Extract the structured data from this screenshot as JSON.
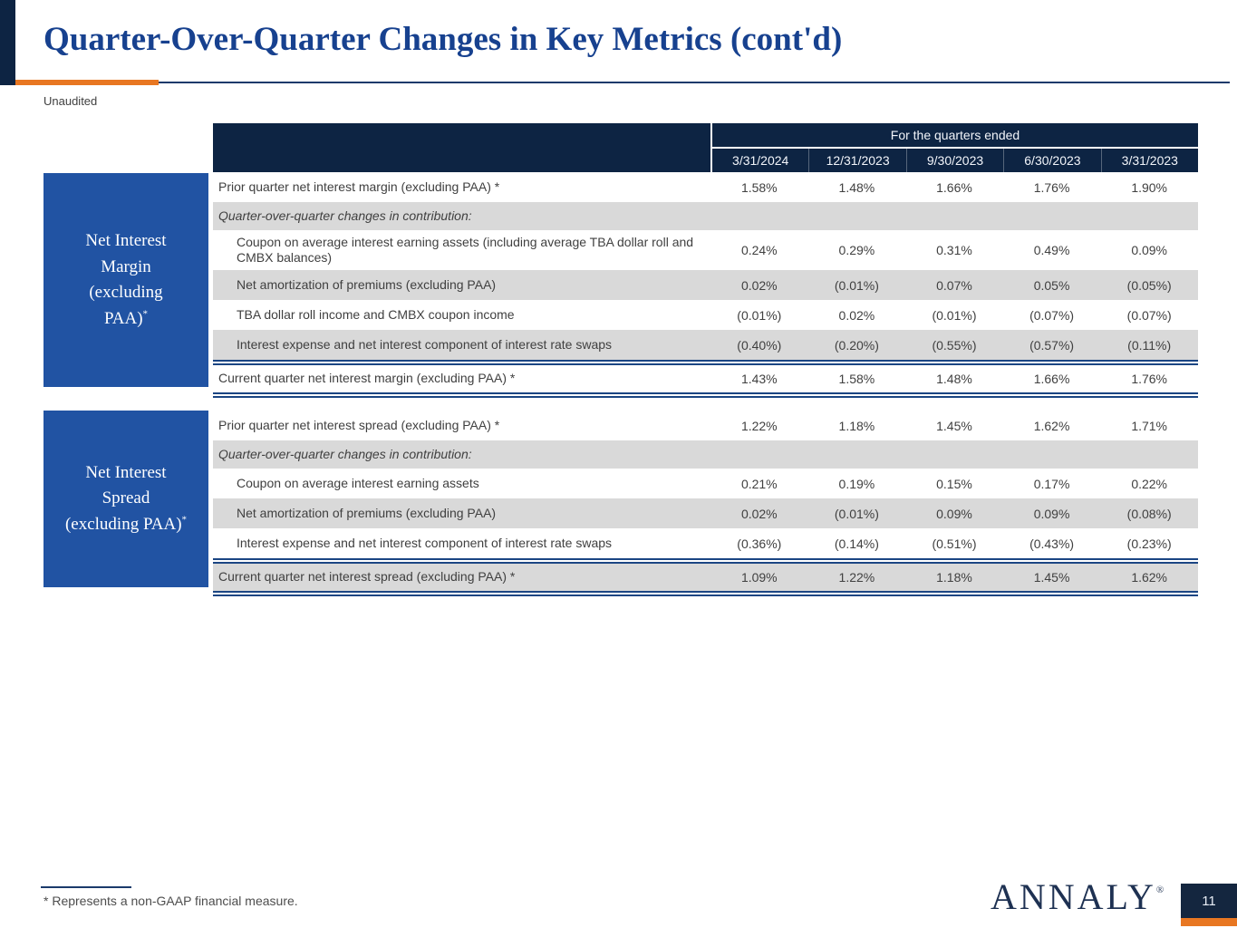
{
  "slide": {
    "title": "Quarter-Over-Quarter Changes in Key Metrics (cont'd)",
    "subtitle": "Unaudited",
    "footnote": "* Represents a non-GAAP financial measure.",
    "logo_text": "ANNALY",
    "logo_reg_mark": "®",
    "page_number": "11"
  },
  "colors": {
    "title_blue": "#17418f",
    "header_navy": "#0d2443",
    "side_box_blue": "#2153a3",
    "brand_orange": "#e87722",
    "shaded_row_gray": "#d9d9d9",
    "body_text": "#404040",
    "total_rule_blue": "#1b4583",
    "logo_navy": "#1e3152"
  },
  "table": {
    "header_label": "For the quarters ended",
    "columns": [
      "3/31/2024",
      "12/31/2023",
      "9/30/2023",
      "6/30/2023",
      "3/31/2023"
    ],
    "sections": [
      {
        "side_label": {
          "lines": [
            "Net Interest",
            "Margin",
            "(excluding",
            "PAA)"
          ],
          "sup": "*"
        },
        "rows": [
          {
            "label": "Prior quarter net interest margin (excluding PAA) *",
            "values": [
              "1.58%",
              "1.48%",
              "1.66%",
              "1.76%",
              "1.90%"
            ],
            "variant": "plain",
            "shaded": false
          },
          {
            "label": "Quarter-over-quarter changes in contribution:",
            "values": [
              "",
              "",
              "",
              "",
              ""
            ],
            "variant": "subhead",
            "shaded": true
          },
          {
            "label": "Coupon on average interest earning assets (including average TBA dollar roll and CMBX balances)",
            "values": [
              "0.24%",
              "0.29%",
              "0.31%",
              "0.49%",
              "0.09%"
            ],
            "variant": "indent",
            "tall": true,
            "shaded": false
          },
          {
            "label": "Net amortization of premiums (excluding PAA)",
            "values": [
              "0.02%",
              "(0.01%)",
              "0.07%",
              "0.05%",
              "(0.05%)"
            ],
            "variant": "indent",
            "shaded": true
          },
          {
            "label": "TBA dollar roll income and CMBX coupon income",
            "values": [
              "(0.01%)",
              "0.02%",
              "(0.01%)",
              "(0.07%)",
              "(0.07%)"
            ],
            "variant": "indent",
            "shaded": false
          },
          {
            "label": "Interest expense and net interest component of interest rate swaps",
            "values": [
              "(0.40%)",
              "(0.20%)",
              "(0.55%)",
              "(0.57%)",
              "(0.11%)"
            ],
            "variant": "indent",
            "shaded": true
          },
          {
            "label": "Current quarter net interest margin (excluding PAA) *",
            "values": [
              "1.43%",
              "1.58%",
              "1.48%",
              "1.66%",
              "1.76%"
            ],
            "variant": "total",
            "shaded": false,
            "rule_before": true,
            "rule_after": true
          }
        ]
      },
      {
        "side_label": {
          "lines": [
            "Net Interest",
            "Spread",
            "(excluding PAA)"
          ],
          "sup": "*"
        },
        "rows": [
          {
            "label": "Prior quarter net interest spread (excluding PAA) *",
            "values": [
              "1.22%",
              "1.18%",
              "1.45%",
              "1.62%",
              "1.71%"
            ],
            "variant": "plain",
            "shaded": false
          },
          {
            "label": "Quarter-over-quarter changes in contribution:",
            "values": [
              "",
              "",
              "",
              "",
              ""
            ],
            "variant": "subhead",
            "shaded": true
          },
          {
            "label": "Coupon on average interest earning assets",
            "values": [
              "0.21%",
              "0.19%",
              "0.15%",
              "0.17%",
              "0.22%"
            ],
            "variant": "indent",
            "shaded": false
          },
          {
            "label": "Net amortization of premiums (excluding PAA)",
            "values": [
              "0.02%",
              "(0.01%)",
              "0.09%",
              "0.09%",
              "(0.08%)"
            ],
            "variant": "indent",
            "shaded": true
          },
          {
            "label": "Interest expense and net interest component of interest rate swaps",
            "values": [
              "(0.36%)",
              "(0.14%)",
              "(0.51%)",
              "(0.43%)",
              "(0.23%)"
            ],
            "variant": "indent",
            "shaded": false
          },
          {
            "label": "Current quarter net interest spread (excluding PAA) *",
            "values": [
              "1.09%",
              "1.22%",
              "1.18%",
              "1.45%",
              "1.62%"
            ],
            "variant": "total",
            "shaded": true,
            "rule_before": true,
            "rule_after": true
          }
        ]
      }
    ]
  }
}
